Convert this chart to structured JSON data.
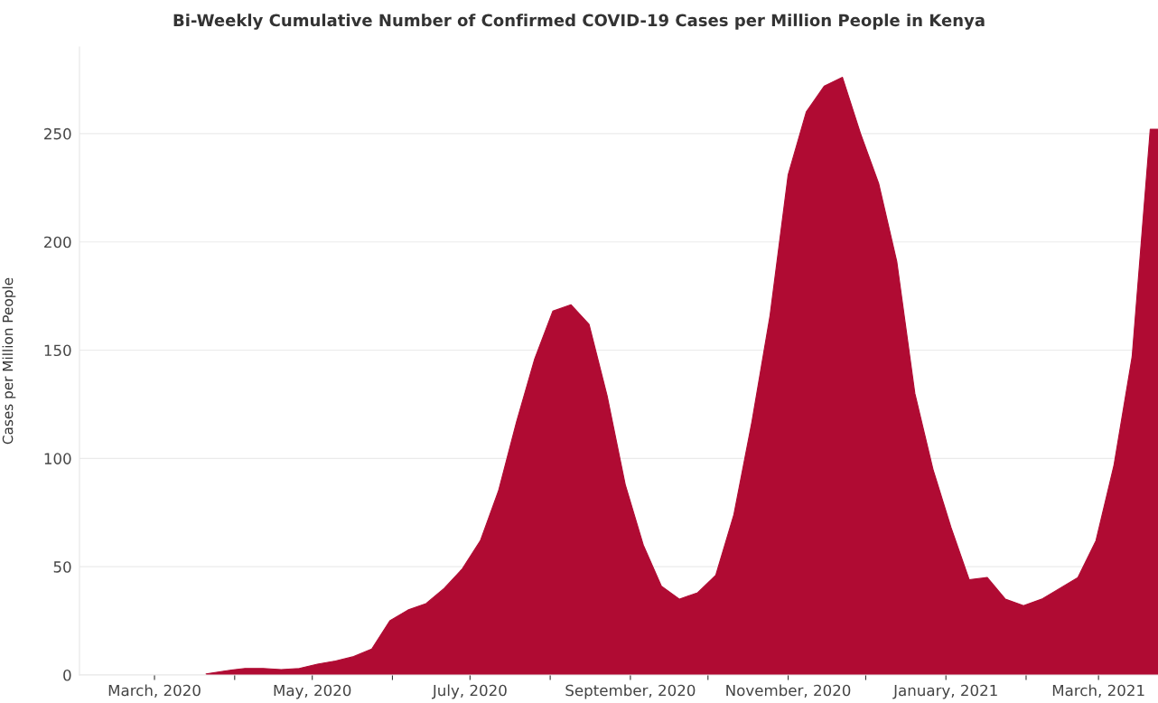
{
  "chart_data": {
    "type": "area",
    "title": "Bi-Weekly Cumulative Number of Confirmed COVID-19 Cases per Million People in Kenya",
    "ylabel": "Cases per Million People",
    "x": [
      "2020-03-21",
      "2020-03-29",
      "2020-04-05",
      "2020-04-12",
      "2020-04-19",
      "2020-04-26",
      "2020-05-03",
      "2020-05-10",
      "2020-05-17",
      "2020-05-24",
      "2020-05-31",
      "2020-06-07",
      "2020-06-14",
      "2020-06-21",
      "2020-06-28",
      "2020-07-05",
      "2020-07-12",
      "2020-07-19",
      "2020-07-26",
      "2020-08-02",
      "2020-08-09",
      "2020-08-16",
      "2020-08-23",
      "2020-08-30",
      "2020-09-06",
      "2020-09-13",
      "2020-09-20",
      "2020-09-27",
      "2020-10-04",
      "2020-10-11",
      "2020-10-18",
      "2020-10-25",
      "2020-11-01",
      "2020-11-08",
      "2020-11-15",
      "2020-11-22",
      "2020-11-29",
      "2020-12-06",
      "2020-12-13",
      "2020-12-20",
      "2020-12-27",
      "2021-01-03",
      "2021-01-10",
      "2021-01-17",
      "2021-01-24",
      "2021-01-31",
      "2021-02-07",
      "2021-02-14",
      "2021-02-21",
      "2021-02-28",
      "2021-03-07",
      "2021-03-14",
      "2021-03-21",
      "2021-03-24"
    ],
    "series": [
      {
        "color": "#b00b33",
        "values": [
          0.5,
          2,
          3,
          3,
          2.5,
          3,
          5,
          6.5,
          8.5,
          12,
          25,
          30,
          33,
          40,
          49,
          62,
          85,
          117,
          146,
          168,
          171,
          162,
          129,
          88,
          60,
          41,
          35,
          38,
          46,
          74,
          117,
          166,
          231,
          260,
          272,
          276,
          250,
          227,
          191,
          130,
          95,
          68,
          44,
          45,
          35,
          32,
          35,
          40,
          45,
          62,
          97,
          147,
          252,
          252
        ]
      }
    ],
    "xlim": [
      "2020-02-01",
      "2021-03-24"
    ],
    "ylim": [
      0,
      290
    ],
    "yticks": [
      0,
      50,
      100,
      150,
      200,
      250
    ],
    "xticks": [
      {
        "value": "2020-03-01",
        "label": "March, 2020"
      },
      {
        "value": "2020-04-01",
        "label": null
      },
      {
        "value": "2020-05-01",
        "label": "May, 2020"
      },
      {
        "value": "2020-06-01",
        "label": null
      },
      {
        "value": "2020-07-01",
        "label": "July, 2020"
      },
      {
        "value": "2020-08-01",
        "label": null
      },
      {
        "value": "2020-09-01",
        "label": "September, 2020"
      },
      {
        "value": "2020-10-01",
        "label": null
      },
      {
        "value": "2020-11-01",
        "label": "November, 2020"
      },
      {
        "value": "2020-12-01",
        "label": null
      },
      {
        "value": "2021-01-01",
        "label": "January, 2021"
      },
      {
        "value": "2021-02-01",
        "label": null
      },
      {
        "value": "2021-03-01",
        "label": "March, 2021"
      }
    ],
    "grid": "y"
  }
}
